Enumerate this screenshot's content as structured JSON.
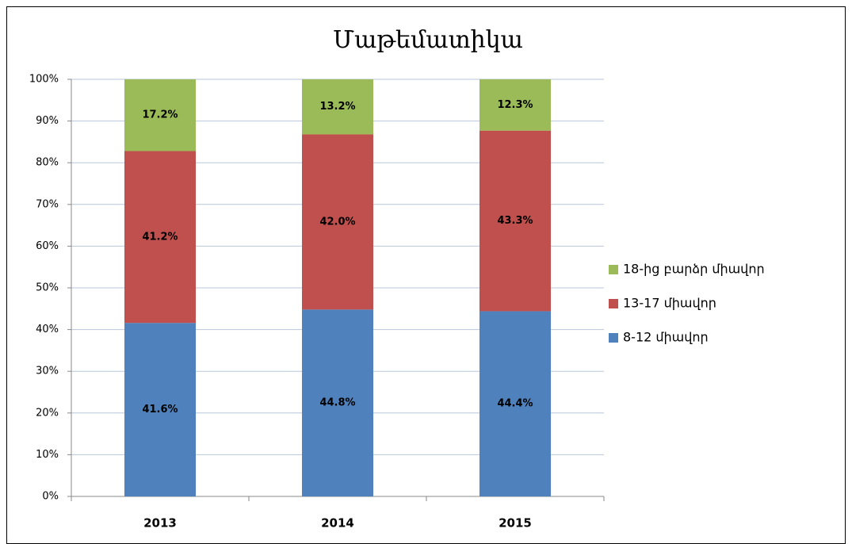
{
  "chart_data": {
    "type": "bar",
    "stacked": true,
    "title": "Մաթեմատիկա",
    "categories": [
      "2013",
      "2014",
      "2015"
    ],
    "series": [
      {
        "name": "8-12 միավոր",
        "color": "#4f81bd",
        "values": [
          41.6,
          44.8,
          44.4
        ],
        "value_labels": [
          "41.6%",
          "44.8%",
          "44.4%"
        ]
      },
      {
        "name": "13-17 միավոր",
        "color": "#c0504d",
        "values": [
          41.2,
          42.0,
          43.3
        ],
        "value_labels": [
          "41.2%",
          "42.0%",
          "43.3%"
        ]
      },
      {
        "name": "18-ից բարձր միավոր",
        "color": "#9bbb59",
        "values": [
          17.2,
          13.2,
          12.3
        ],
        "value_labels": [
          "17.2%",
          "13.2%",
          "12.3%"
        ]
      }
    ],
    "ylim": [
      0,
      100
    ],
    "yticks": [
      {
        "value": 0,
        "label": "0%"
      },
      {
        "value": 10,
        "label": "10%"
      },
      {
        "value": 20,
        "label": "20%"
      },
      {
        "value": 30,
        "label": "30%"
      },
      {
        "value": 40,
        "label": "40%"
      },
      {
        "value": 50,
        "label": "50%"
      },
      {
        "value": 60,
        "label": "60%"
      },
      {
        "value": 70,
        "label": "70%"
      },
      {
        "value": 80,
        "label": "80%"
      },
      {
        "value": 90,
        "label": "90%"
      },
      {
        "value": 100,
        "label": "100%"
      }
    ],
    "grid": true,
    "legend": "right"
  }
}
